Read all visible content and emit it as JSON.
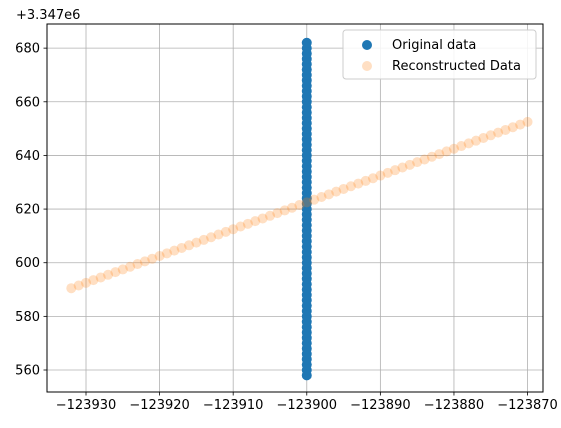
{
  "chart_data": {
    "type": "scatter",
    "title": "",
    "xlabel": "",
    "ylabel": "",
    "y_offset_label": "+3.347e6",
    "xlim": [
      -123935.3,
      -123867.9
    ],
    "ylim": [
      551.8,
      689.0
    ],
    "xticks": [
      -123930,
      -123920,
      -123910,
      -123900,
      -123890,
      -123880,
      -123870
    ],
    "xtick_labels": [
      "−123930",
      "−123920",
      "−123910",
      "−123900",
      "−123890",
      "−123880",
      "−123870"
    ],
    "yticks": [
      560,
      580,
      600,
      620,
      640,
      660,
      680
    ],
    "ytick_labels": [
      "560",
      "580",
      "600",
      "620",
      "640",
      "660",
      "680"
    ],
    "grid": true,
    "legend_position": "top-right",
    "series": [
      {
        "name": "Original data",
        "color": "#1f77b4",
        "alpha": 1.0,
        "marker_size": 5,
        "x": [
          -123900,
          -123900,
          -123900,
          -123900,
          -123900,
          -123900,
          -123900,
          -123900,
          -123900,
          -123900,
          -123900,
          -123900,
          -123900,
          -123900,
          -123900,
          -123900,
          -123900,
          -123900,
          -123900,
          -123900,
          -123900,
          -123900,
          -123900,
          -123900,
          -123900,
          -123900,
          -123900,
          -123900,
          -123900,
          -123900,
          -123900,
          -123900,
          -123900,
          -123900,
          -123900,
          -123900,
          -123900,
          -123900,
          -123900,
          -123900,
          -123900,
          -123900,
          -123900,
          -123900,
          -123900,
          -123900,
          -123900,
          -123900,
          -123900,
          -123900,
          -123900,
          -123900,
          -123900,
          -123900,
          -123900,
          -123900,
          -123900,
          -123900,
          -123900,
          -123900,
          -123900,
          -123900,
          -123900
        ],
        "y": [
          558,
          560,
          562,
          564,
          566,
          568,
          570,
          572,
          574,
          576,
          578,
          580,
          582,
          584,
          586,
          588,
          590,
          592,
          594,
          596,
          598,
          600,
          602,
          604,
          606,
          608,
          610,
          612,
          614,
          616,
          618,
          620,
          622,
          624,
          626,
          628,
          630,
          632,
          634,
          636,
          638,
          640,
          642,
          644,
          646,
          648,
          650,
          652,
          654,
          656,
          658,
          660,
          662,
          664,
          666,
          668,
          670,
          672,
          674,
          676,
          678,
          680,
          682
        ]
      },
      {
        "name": "Reconstructed Data",
        "color": "#ff7f0e",
        "alpha": 0.25,
        "marker_size": 5,
        "x": [
          -123932,
          -123931,
          -123930,
          -123929,
          -123928,
          -123927,
          -123926,
          -123925,
          -123924,
          -123923,
          -123922,
          -123921,
          -123920,
          -123919,
          -123918,
          -123917,
          -123916,
          -123915,
          -123914,
          -123913,
          -123912,
          -123911,
          -123910,
          -123909,
          -123908,
          -123907,
          -123906,
          -123905,
          -123904,
          -123903,
          -123902,
          -123901,
          -123900,
          -123899,
          -123898,
          -123897,
          -123896,
          -123895,
          -123894,
          -123893,
          -123892,
          -123891,
          -123890,
          -123889,
          -123888,
          -123887,
          -123886,
          -123885,
          -123884,
          -123883,
          -123882,
          -123881,
          -123880,
          -123879,
          -123878,
          -123877,
          -123876,
          -123875,
          -123874,
          -123873,
          -123872,
          -123871,
          -123870
        ],
        "y": [
          590.5,
          591.5,
          592.5,
          593.5,
          594.5,
          595.5,
          596.5,
          597.5,
          598.5,
          599.5,
          600.5,
          601.5,
          602.5,
          603.5,
          604.5,
          605.5,
          606.5,
          607.5,
          608.5,
          609.5,
          610.5,
          611.5,
          612.5,
          613.5,
          614.5,
          615.5,
          616.5,
          617.5,
          618.5,
          619.5,
          620.5,
          621.5,
          622.5,
          623.5,
          624.5,
          625.5,
          626.5,
          627.5,
          628.5,
          629.5,
          630.5,
          631.5,
          632.5,
          633.5,
          634.5,
          635.5,
          636.5,
          637.5,
          638.5,
          639.5,
          640.5,
          641.5,
          642.5,
          643.5,
          644.5,
          645.5,
          646.5,
          647.5,
          648.5,
          649.5,
          650.5,
          651.5,
          652.5
        ]
      }
    ]
  }
}
